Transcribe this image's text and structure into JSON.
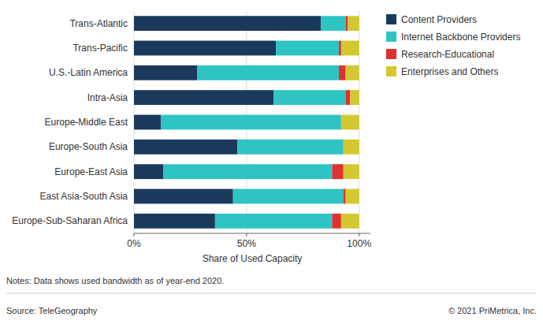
{
  "chart_data": {
    "type": "bar",
    "orientation": "horizontal",
    "stacked": true,
    "categories": [
      "Trans-Atlantic",
      "Trans-Pacific",
      "U.S.-Latin America",
      "Intra-Asia",
      "Europe-Middle East",
      "Europe-South Asia",
      "Europe-East Asia",
      "East Asia-South Asia",
      "Europe-Sub-Saharan Africa"
    ],
    "series": [
      {
        "name": "Content Providers",
        "color": "#1a3a5c",
        "values": [
          83,
          63,
          28,
          62,
          12,
          46,
          13,
          44,
          36
        ]
      },
      {
        "name": "Internet Backbone Providers",
        "color": "#2ec4c4",
        "values": [
          11,
          28,
          63,
          32,
          80,
          47,
          75,
          49,
          52
        ]
      },
      {
        "name": "Research-Educational",
        "color": "#e03030",
        "values": [
          1,
          1,
          3,
          2,
          0,
          0,
          5,
          1,
          4
        ]
      },
      {
        "name": "Enterprises and Others",
        "color": "#d4c830",
        "values": [
          5,
          8,
          6,
          4,
          8,
          7,
          7,
          6,
          8
        ]
      }
    ],
    "xlabel": "Share of Used Capacity",
    "xlim": [
      0,
      105
    ],
    "xticks": [
      {
        "value": 0,
        "label": "0%"
      },
      {
        "value": 50,
        "label": "50%"
      },
      {
        "value": 100,
        "label": "100%"
      }
    ],
    "grid": true,
    "legend": "right",
    "annotations": [
      "Notes: Data shows used bandwidth as of year-end 2020.",
      "Source: TeleGeography",
      "© 2021 PriMetrica, Inc."
    ]
  }
}
